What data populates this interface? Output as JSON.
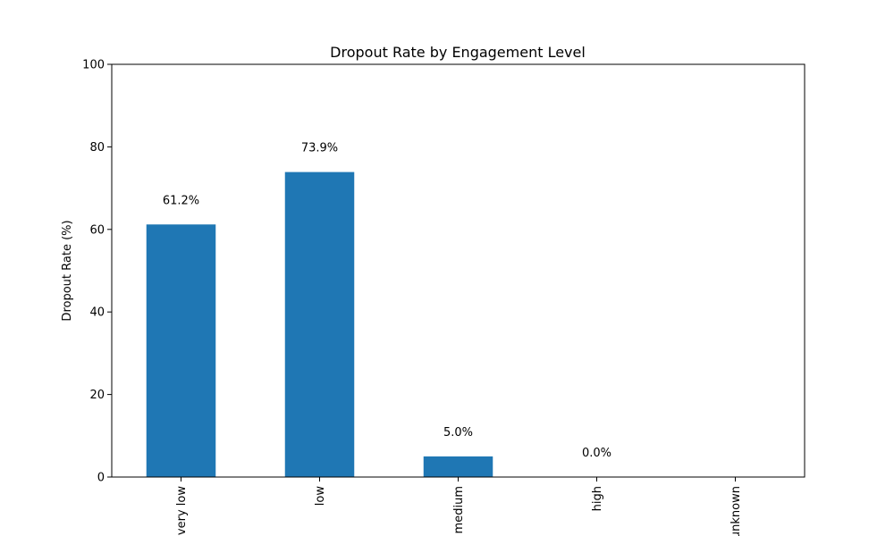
{
  "chart_data": {
    "type": "bar",
    "title": "Dropout Rate by Engagement Level",
    "xlabel": "",
    "ylabel": "Dropout Rate (%)",
    "categories": [
      "very low",
      "low",
      "medium",
      "high",
      "unknown"
    ],
    "values": [
      61.2,
      73.9,
      5.0,
      0.0,
      null
    ],
    "data_labels": [
      "61.2%",
      "73.9%",
      "5.0%",
      "0.0%",
      ""
    ],
    "ylim": [
      0,
      100
    ],
    "yticks": [
      0,
      20,
      40,
      60,
      80,
      100
    ],
    "grid": false,
    "legend": "none",
    "bar_color": "#1f77b4"
  }
}
